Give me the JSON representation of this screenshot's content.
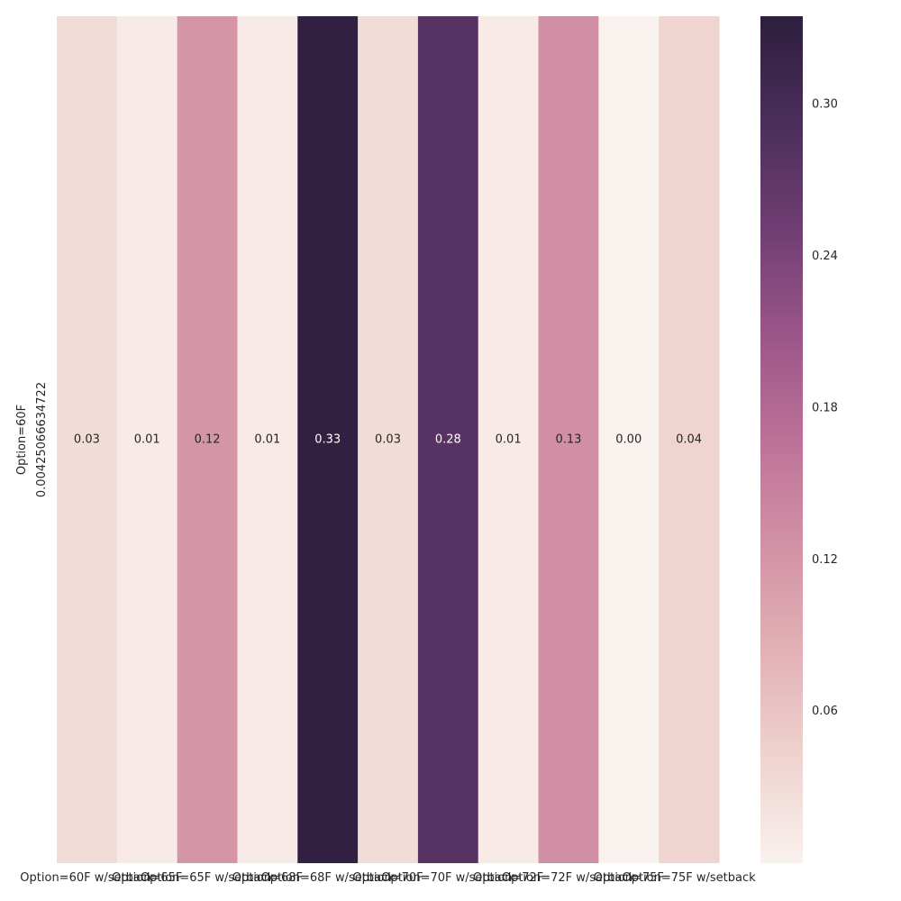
{
  "chart_data": {
    "type": "heatmap",
    "title": "",
    "xlabel": "",
    "ylabel": "",
    "x_categories": [
      "Option=60F w/setback",
      "Option=65F",
      "Option=65F w/setback",
      "Option=68F",
      "Option=68F w/setback",
      "Option=70F",
      "Option=70F w/setback",
      "Option=72F",
      "Option=72F w/setback",
      "Option=75F",
      "Option=75F w/setback"
    ],
    "y_categories": [
      [
        "Option=60F",
        "0.00425066634722"
      ]
    ],
    "values": [
      [
        0.03,
        0.01,
        0.12,
        0.01,
        0.33,
        0.03,
        0.28,
        0.01,
        0.13,
        0.0,
        0.04
      ]
    ],
    "cell_labels": [
      [
        "0.03",
        "0.01",
        "0.12",
        "0.01",
        "0.33",
        "0.03",
        "0.28",
        "0.01",
        "0.13",
        "0.00",
        "0.04"
      ]
    ],
    "colorbar": {
      "range": [
        0.0,
        0.335
      ],
      "ticks": [
        0.06,
        0.12,
        0.18,
        0.24,
        0.3
      ],
      "tick_labels": [
        "0.06",
        "0.12",
        "0.18",
        "0.24",
        "0.30"
      ]
    },
    "colormap": [
      "#f9f1ee",
      "#efd3cf",
      "#e2b1b6",
      "#d292a5",
      "#bc7197",
      "#9a5589",
      "#6f3e72",
      "#4b2e5a",
      "#2d1e3e"
    ],
    "annotation_dark_color": "#262626",
    "annotation_light_color": "#ffffff"
  }
}
